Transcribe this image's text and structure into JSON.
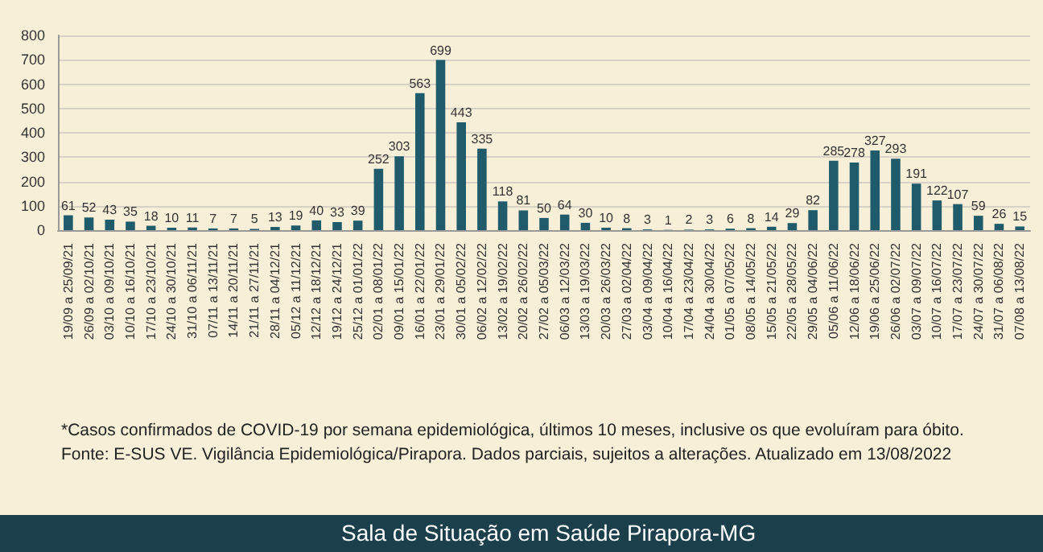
{
  "chart_data": {
    "type": "bar",
    "categories": [
      "19/09 a 25/09/21",
      "26/09 a 02/10/21",
      "03/10 a 09/10/21",
      "10/10 a 16/10/21",
      "17/10 a 23/10/21",
      "24/10 a 30/10/21",
      "31/10 a 06/11/21",
      "07/11 a 13/11/21",
      "14/11 a 20/11/21",
      "21/11 a 27/11/21",
      "28/11 a 04/12/21",
      "05/12 a 11/12/21",
      "12/12 a 18/12/21",
      "19/12 a 24/12/21",
      "25/12 a 01/01/22",
      "02/01 a 08/01/22",
      "09/01 a 15/01/22",
      "16/01 a 22/01/22",
      "23/01 a 29/01/22",
      "30/01 a 05/02/22",
      "06/02 a 12/02/22",
      "13/02 a 19/02/22",
      "20/02 a 26/02/22",
      "27/02 a 05/03/22",
      "06/03 a 12/03/22",
      "13/03 a 19/03/22",
      "20/03 a 26/03/22",
      "27/03 a 02/04/22",
      "03/04 a 09/04/22",
      "10/04 a 16/04/22",
      "17/04 a 23/04/22",
      "24/04 a 30/04/22",
      "01/05 a 07/05/22",
      "08/05 a 14/05/22",
      "15/05 a 21/05/22",
      "22/05 a 28/05/22",
      "29/05 a 04/06/22",
      "05/06 a 11/06/22",
      "12/06 a 18/06/22",
      "19/06 a 25/06/22",
      "26/06 a 02/07/22",
      "03/07 a 09/07/22",
      "10/07 a 16/07/22",
      "17/07 a 23/07/22",
      "24/07 a 30/07/22",
      "31/07 a 06/08/22",
      "07/08 a 13/08/22"
    ],
    "values": [
      61,
      52,
      43,
      35,
      18,
      10,
      11,
      7,
      7,
      5,
      13,
      19,
      40,
      33,
      39,
      252,
      303,
      563,
      699,
      443,
      335,
      118,
      81,
      50,
      64,
      30,
      10,
      8,
      3,
      1,
      2,
      3,
      6,
      8,
      14,
      29,
      82,
      285,
      278,
      327,
      293,
      191,
      122,
      107,
      59,
      26,
      15
    ],
    "color": "#1f5b6b",
    "ylim": [
      0,
      800
    ],
    "yticks": [
      0,
      100,
      200,
      300,
      400,
      500,
      600,
      700,
      800
    ],
    "grid": "y",
    "data_labels": true,
    "annotations": [
      "*Casos confirmados de COVID-19 por semana epidemiológica, últimos 10 meses, inclusive os que evoluíram para óbito.",
      "Fonte: E-SUS VE. Vigilância Epidemiológica/Pirapora. Dados parciais, sujeitos a alterações. Atualizado em 13/08/2022",
      "Sala de Situação em Saúde Pirapora-MG"
    ]
  }
}
